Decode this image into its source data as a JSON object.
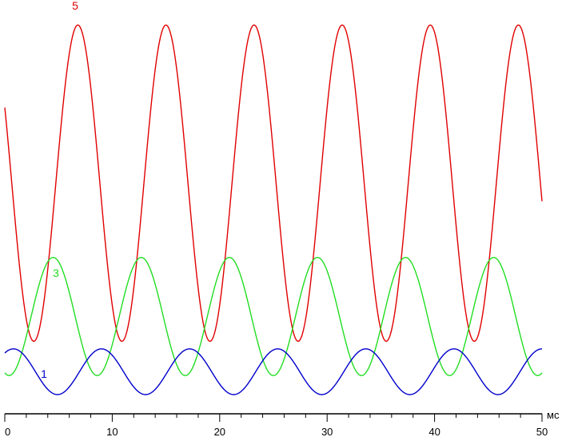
{
  "chart_data": {
    "type": "line",
    "xlabel": "мс",
    "xlim": [
      0,
      50
    ],
    "x_ticks": [
      "0",
      "10",
      "20",
      "30",
      "40",
      "50"
    ],
    "grid": false,
    "colors": {
      "5": "#e00000",
      "3": "#22dd22",
      "1": "#0000cc",
      "axis": "#000000"
    },
    "series": [
      {
        "name": "5",
        "period_ms": 8.2,
        "phase_peak_ms": 6.8,
        "y_min": 0.14,
        "y_max": 0.97,
        "start_x": 0,
        "end_x": 50
      },
      {
        "name": "3",
        "period_ms": 8.2,
        "phase_peak_ms": 4.5,
        "y_min": 0.05,
        "y_max": 0.36,
        "start_x": 0,
        "end_x": 50
      },
      {
        "name": "1",
        "period_ms": 8.2,
        "phase_peak_ms": 9.0,
        "y_min": 0.0,
        "y_max": 0.12,
        "start_x": 0,
        "end_x": 50
      }
    ],
    "ylim": [
      0,
      1
    ]
  }
}
